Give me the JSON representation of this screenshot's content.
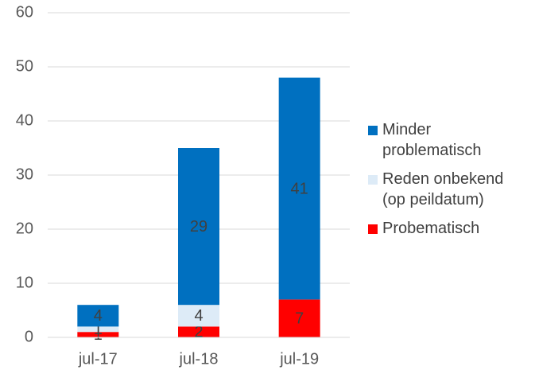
{
  "chart_data": {
    "type": "stacked_bar",
    "categories": [
      "jul-17",
      "jul-18",
      "jul-19"
    ],
    "series": [
      {
        "name": "Probematisch",
        "color": "#ff0000",
        "values": [
          1,
          2,
          7
        ]
      },
      {
        "name": "Reden onbekend (op peildatum)",
        "color": "#ddebf7",
        "values": [
          1,
          4,
          null
        ]
      },
      {
        "name": "Minder problematisch",
        "color": "#0070c0",
        "values": [
          4,
          29,
          41
        ]
      }
    ],
    "ylim": [
      0,
      60
    ],
    "yticks": [
      0,
      10,
      20,
      30,
      40,
      50,
      60
    ],
    "grid": true,
    "legend": "right"
  }
}
